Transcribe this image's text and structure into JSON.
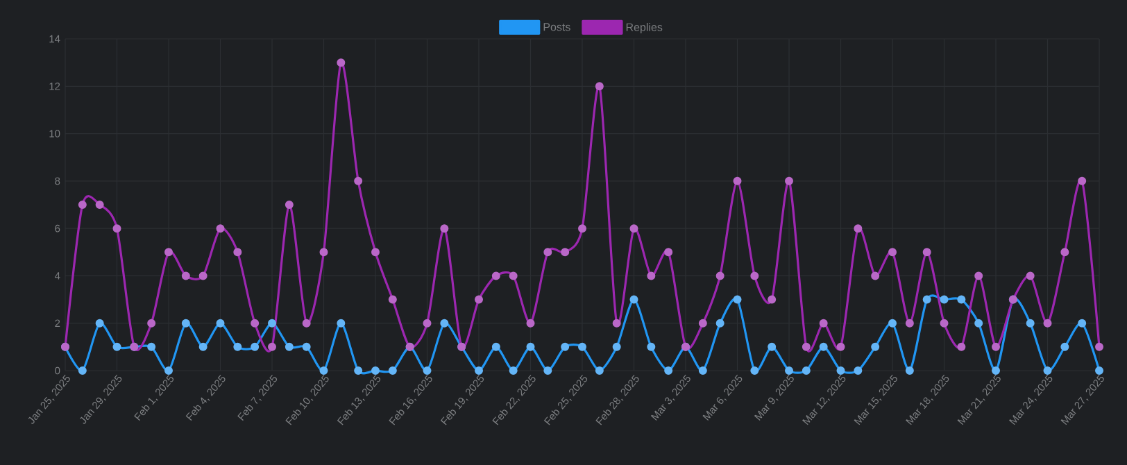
{
  "chart_data": {
    "type": "line",
    "categories": [
      "Jan 25, 2025",
      null,
      null,
      "Jan 29, 2025",
      null,
      null,
      "Feb 1, 2025",
      null,
      null,
      "Feb 4, 2025",
      null,
      null,
      "Feb 7, 2025",
      null,
      null,
      "Feb 10, 2025",
      null,
      null,
      "Feb 13, 2025",
      null,
      null,
      "Feb 16, 2025",
      null,
      null,
      "Feb 19, 2025",
      null,
      null,
      "Feb 22, 2025",
      null,
      null,
      "Feb 25, 2025",
      null,
      null,
      "Feb 28, 2025",
      null,
      null,
      "Mar 3, 2025",
      null,
      null,
      "Mar 6, 2025",
      null,
      null,
      "Mar 9, 2025",
      null,
      null,
      "Mar 12, 2025",
      null,
      null,
      "Mar 15, 2025",
      null,
      null,
      "Mar 18, 2025",
      null,
      null,
      "Mar 21, 2025",
      null,
      null,
      "Mar 24, 2025",
      null,
      null,
      "Mar 27, 2025"
    ],
    "series": [
      {
        "name": "Posts",
        "color": "#2196f3",
        "values": [
          1,
          0,
          2,
          1,
          1,
          1,
          0,
          2,
          1,
          2,
          1,
          1,
          2,
          1,
          1,
          0,
          2,
          0,
          0,
          0,
          1,
          0,
          2,
          1,
          0,
          1,
          0,
          1,
          0,
          1,
          1,
          0,
          1,
          3,
          1,
          0,
          1,
          0,
          2,
          3,
          0,
          1,
          0,
          0,
          1,
          0,
          0,
          1,
          2,
          0,
          3,
          3,
          3,
          2,
          0,
          3,
          2,
          0,
          1,
          2,
          0
        ]
      },
      {
        "name": "Replies",
        "color": "#9c27b0",
        "values": [
          1,
          7,
          7,
          6,
          1,
          2,
          5,
          4,
          4,
          6,
          5,
          2,
          1,
          7,
          2,
          5,
          13,
          8,
          5,
          3,
          1,
          2,
          6,
          1,
          3,
          4,
          4,
          2,
          5,
          5,
          6,
          12,
          2,
          6,
          4,
          5,
          1,
          2,
          4,
          8,
          4,
          3,
          8,
          1,
          2,
          1,
          6,
          4,
          5,
          2,
          5,
          2,
          1,
          4,
          1,
          3,
          4,
          2,
          5,
          8,
          1
        ]
      }
    ],
    "ylim": [
      0,
      14
    ],
    "yticks": [
      0,
      2,
      4,
      6,
      8,
      10,
      12,
      14
    ],
    "grid": true,
    "legend": "top",
    "marker": "circle"
  }
}
